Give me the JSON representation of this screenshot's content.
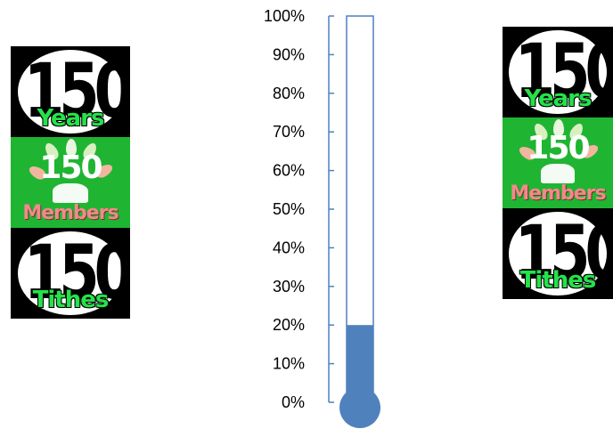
{
  "badges": {
    "years_number": "150",
    "years_label": "Years",
    "members_number": "150",
    "members_label": "Members",
    "tithes_number": "150",
    "tithes_label": "Tithes"
  },
  "colors": {
    "fill": "#4f81bd",
    "outline": "#4f81bd",
    "badge_green": "#1fb532",
    "label_green": "#25e24a",
    "label_pink": "#f08a8a"
  },
  "chart_data": {
    "type": "bar",
    "subtype": "thermometer",
    "values": [
      20
    ],
    "ylim": [
      0,
      100
    ],
    "tick_labels": [
      "0%",
      "10%",
      "20%",
      "30%",
      "40%",
      "50%",
      "60%",
      "70%",
      "80%",
      "90%",
      "100%"
    ],
    "grid": false,
    "legend": "none"
  }
}
